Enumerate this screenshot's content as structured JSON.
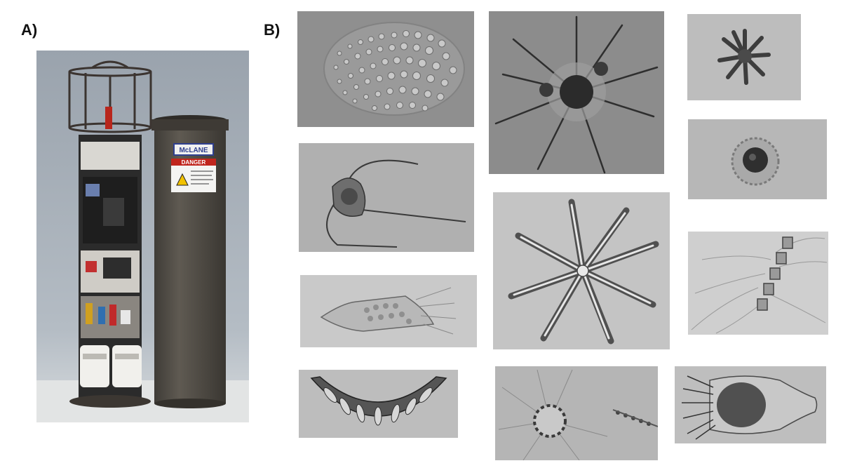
{
  "figure": {
    "panel_a_label": "A)",
    "panel_b_label": "B)"
  },
  "panel_a": {
    "housing_brand_text": "McLANE",
    "warning_label_text": "DANGER"
  },
  "colors": {
    "photo_background": "#a9b2bb",
    "housing": "#57534c",
    "danger_red": "#c0251d",
    "microscopy_gray": "#a3a3a3"
  }
}
